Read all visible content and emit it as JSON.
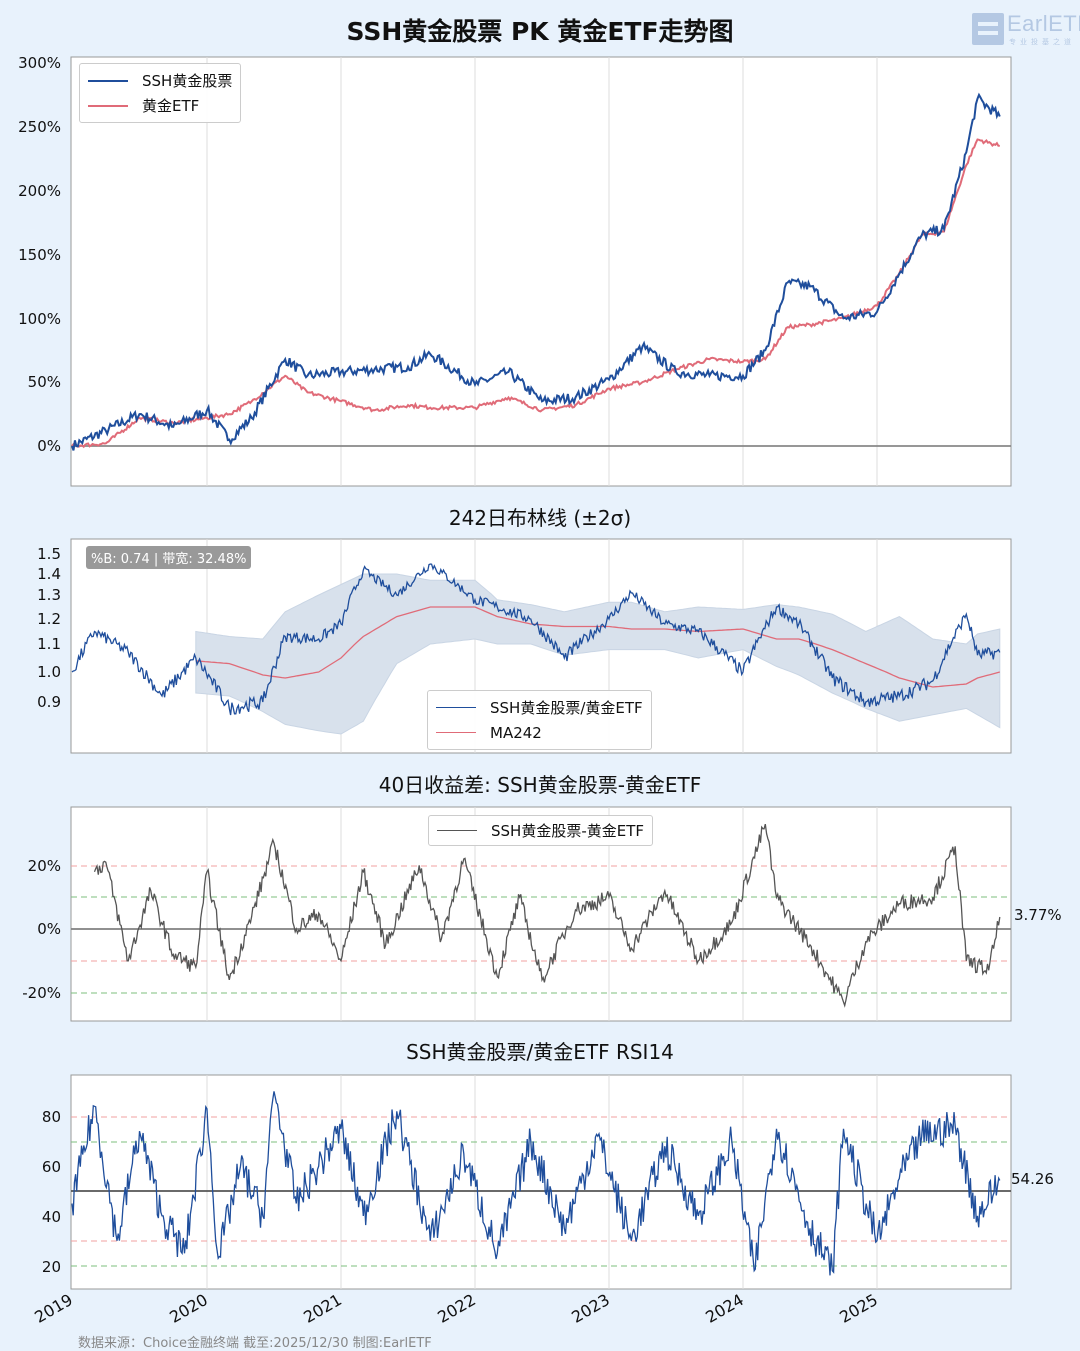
{
  "header": {
    "title": "SSH黄金股票 PK 黄金ETF走势图",
    "logo_text": "EarlETF",
    "logo_subtext": "专业投基之道"
  },
  "footer": {
    "source_text": "数据来源：Choice金融终端 截至:2025/12/30 制图:EarlETF"
  },
  "colors": {
    "background": "#e8f2fc",
    "ssh_stock_line": "#1f4e9c",
    "gold_etf_line": "#e06b78",
    "diff_line": "#555555",
    "band_fill": "#d8e1ec",
    "ma_line": "#e06b78",
    "ref_red_dashed": "#f0a0a0",
    "ref_green_dashed": "#7cbf7c",
    "zero_line": "#808080"
  },
  "chart_data": [
    {
      "id": "cumulative-return",
      "type": "line",
      "title": "SSH黄金股票 PK 黄金ETF走势图",
      "xlabel": "",
      "ylabel": "",
      "x_ticks": [
        "2019",
        "2020",
        "2021",
        "2022",
        "2023",
        "2024",
        "2025"
      ],
      "y_ticks": [
        "0%",
        "50%",
        "100%",
        "150%",
        "200%",
        "250%",
        "300%"
      ],
      "ylim": [
        -30,
        305
      ],
      "grid": "vertical",
      "legend_position": "upper left",
      "x": [
        "2019-01",
        "2019-04",
        "2019-07",
        "2019-10",
        "2020-01",
        "2020-03",
        "2020-05",
        "2020-08",
        "2020-10",
        "2021-01",
        "2021-04",
        "2021-07",
        "2021-09",
        "2022-01",
        "2022-04",
        "2022-07",
        "2022-10",
        "2023-01",
        "2023-04",
        "2023-07",
        "2023-10",
        "2024-01",
        "2024-03",
        "2024-05",
        "2024-07",
        "2024-10",
        "2025-01",
        "2025-03",
        "2025-05",
        "2025-07",
        "2025-09",
        "2025-10",
        "2025-12"
      ],
      "series": [
        {
          "name": "SSH黄金股票",
          "values": [
            0,
            12,
            25,
            15,
            28,
            5,
            22,
            68,
            55,
            58,
            60,
            62,
            72,
            48,
            58,
            35,
            38,
            52,
            78,
            58,
            55,
            55,
            75,
            128,
            125,
            100,
            105,
            135,
            165,
            170,
            230,
            272,
            258
          ]
        },
        {
          "name": "黄金ETF",
          "values": [
            0,
            2,
            22,
            18,
            22,
            25,
            35,
            55,
            42,
            35,
            28,
            32,
            30,
            30,
            38,
            28,
            32,
            45,
            50,
            60,
            68,
            66,
            68,
            93,
            95,
            100,
            110,
            135,
            165,
            168,
            220,
            240,
            235
          ]
        }
      ]
    },
    {
      "id": "bollinger-ratio",
      "type": "line",
      "title": "242日布林线 (±2σ)",
      "y_ticks": [
        "0.9",
        "1.0",
        "1.1",
        "1.2",
        "1.3",
        "1.4",
        "1.5"
      ],
      "ylim": [
        0.8,
        1.55
      ],
      "legend_position": "lower center",
      "annotation": "%B: 0.74 | 带宽: 32.48%",
      "x": [
        "2019-01",
        "2019-03",
        "2019-06",
        "2019-09",
        "2019-12",
        "2020-03",
        "2020-06",
        "2020-08",
        "2020-11",
        "2021-01",
        "2021-03",
        "2021-06",
        "2021-09",
        "2022-01",
        "2022-03",
        "2022-06",
        "2022-09",
        "2023-01",
        "2023-03",
        "2023-06",
        "2023-09",
        "2024-01",
        "2024-04",
        "2024-06",
        "2024-09",
        "2024-12",
        "2025-03",
        "2025-06",
        "2025-09",
        "2025-10",
        "2025-12"
      ],
      "series": [
        {
          "name": "SSH黄金股票/黄金ETF",
          "values": [
            1.0,
            1.15,
            1.07,
            0.92,
            1.05,
            0.88,
            0.9,
            1.13,
            1.12,
            1.18,
            1.42,
            1.3,
            1.45,
            1.28,
            1.25,
            1.2,
            1.05,
            1.2,
            1.31,
            1.18,
            1.15,
            1.0,
            1.25,
            1.18,
            0.98,
            0.9,
            0.92,
            0.97,
            1.22,
            1.06,
            1.07
          ]
        },
        {
          "name": "MA242",
          "values": [
            null,
            null,
            null,
            null,
            1.04,
            1.03,
            0.99,
            0.98,
            1.0,
            1.05,
            1.13,
            1.21,
            1.25,
            1.25,
            1.21,
            1.18,
            1.17,
            1.17,
            1.16,
            1.16,
            1.15,
            1.16,
            1.12,
            1.12,
            1.08,
            1.03,
            0.98,
            0.95,
            0.96,
            0.98,
            1.0
          ]
        },
        {
          "name": "Upper band",
          "values": [
            null,
            null,
            null,
            null,
            1.15,
            1.13,
            1.12,
            1.23,
            1.3,
            1.35,
            1.4,
            1.4,
            1.37,
            1.37,
            1.28,
            1.26,
            1.23,
            1.27,
            1.27,
            1.23,
            1.25,
            1.24,
            1.26,
            1.25,
            1.22,
            1.15,
            1.21,
            1.12,
            1.1,
            1.14,
            1.16
          ]
        },
        {
          "name": "Lower band",
          "values": [
            null,
            null,
            null,
            null,
            0.93,
            0.92,
            0.87,
            0.83,
            0.81,
            0.8,
            0.84,
            1.03,
            1.1,
            1.12,
            1.1,
            1.1,
            1.06,
            1.08,
            1.08,
            1.08,
            1.05,
            1.08,
            1.02,
            0.99,
            0.93,
            0.88,
            0.84,
            0.86,
            0.88,
            0.86,
            0.82
          ]
        }
      ]
    },
    {
      "id": "return-spread-40d",
      "type": "line",
      "title": "40日收益差: SSH黄金股票-黄金ETF",
      "y_ticks": [
        "-20%",
        "0%",
        "20%"
      ],
      "ylim": [
        -29,
        38
      ],
      "legend_position": "upper center",
      "reference_lines": [
        {
          "value": 20,
          "style": "dashed",
          "color": "red"
        },
        {
          "value": 10,
          "style": "dashed",
          "color": "green"
        },
        {
          "value": 0,
          "style": "solid",
          "color": "gray"
        },
        {
          "value": -10,
          "style": "dashed",
          "color": "red"
        },
        {
          "value": -20,
          "style": "dashed",
          "color": "green"
        }
      ],
      "last_value_label": "3.77%",
      "x": [
        "2019-03",
        "2019-04",
        "2019-06",
        "2019-08",
        "2019-10",
        "2019-12",
        "2020-01",
        "2020-03",
        "2020-05",
        "2020-07",
        "2020-09",
        "2020-11",
        "2021-01",
        "2021-03",
        "2021-05",
        "2021-08",
        "2021-10",
        "2021-12",
        "2022-03",
        "2022-05",
        "2022-07",
        "2022-10",
        "2023-01",
        "2023-03",
        "2023-06",
        "2023-09",
        "2023-12",
        "2024-03",
        "2024-04",
        "2024-07",
        "2024-10",
        "2024-12",
        "2025-03",
        "2025-06",
        "2025-08",
        "2025-09",
        "2025-11",
        "2025-12"
      ],
      "series": [
        {
          "name": "SSH黄金股票-黄金ETF",
          "values": [
            18,
            21,
            -10,
            12,
            -8,
            -12,
            18,
            -16,
            4,
            27,
            0,
            5,
            -10,
            18,
            -5,
            20,
            -3,
            22,
            -15,
            10,
            -16,
            6,
            10,
            -6,
            12,
            -10,
            2,
            33,
            10,
            -5,
            -23,
            -4,
            8,
            10,
            26,
            -10,
            -13,
            3.77
          ]
        }
      ]
    },
    {
      "id": "rsi14",
      "type": "line",
      "title": "SSH黄金股票/黄金ETF RSI14",
      "y_ticks": [
        "20",
        "40",
        "60",
        "80"
      ],
      "ylim": [
        11,
        97
      ],
      "reference_lines": [
        {
          "value": 80,
          "style": "dashed",
          "color": "red"
        },
        {
          "value": 70,
          "style": "dashed",
          "color": "green"
        },
        {
          "value": 50,
          "style": "solid",
          "color": "gray"
        },
        {
          "value": 30,
          "style": "dashed",
          "color": "red"
        },
        {
          "value": 20,
          "style": "dashed",
          "color": "green"
        }
      ],
      "last_value_label": "54.26",
      "x": [
        "2019-01",
        "2019-03",
        "2019-05",
        "2019-07",
        "2019-09",
        "2019-11",
        "2020-01",
        "2020-02",
        "2020-04",
        "2020-06",
        "2020-07",
        "2020-09",
        "2020-11",
        "2021-01",
        "2021-03",
        "2021-06",
        "2021-09",
        "2021-12",
        "2022-03",
        "2022-06",
        "2022-09",
        "2022-12",
        "2023-03",
        "2023-06",
        "2023-09",
        "2023-12",
        "2024-02",
        "2024-04",
        "2024-07",
        "2024-09",
        "2024-10",
        "2025-01",
        "2025-03",
        "2025-05",
        "2025-08",
        "2025-10",
        "2025-12"
      ],
      "series": [
        {
          "name": "RSI14",
          "values": [
            45,
            84,
            30,
            74,
            40,
            25,
            83,
            23,
            60,
            40,
            90,
            45,
            60,
            75,
            40,
            82,
            30,
            65,
            25,
            70,
            35,
            72,
            30,
            68,
            40,
            70,
            18,
            75,
            35,
            18,
            75,
            30,
            55,
            72,
            76,
            40,
            54.26
          ]
        }
      ]
    }
  ],
  "charts": {
    "main": {
      "legend": [
        {
          "label": "SSH黄金股票"
        },
        {
          "label": "黄金ETF"
        }
      ]
    },
    "bollinger": {
      "title": "242日布林线 (±2σ)",
      "badge": "%B: 0.74 | 带宽: 32.48%",
      "legend": [
        {
          "label": "SSH黄金股票/黄金ETF"
        },
        {
          "label": "MA242"
        }
      ]
    },
    "spread": {
      "title": "40日收益差: SSH黄金股票-黄金ETF",
      "legend": [
        {
          "label": "SSH黄金股票-黄金ETF"
        }
      ],
      "last_value": "3.77%"
    },
    "rsi": {
      "title": "SSH黄金股票/黄金ETF RSI14",
      "last_value": "54.26"
    },
    "x_axis_years": [
      "2019",
      "2020",
      "2021",
      "2022",
      "2023",
      "2024",
      "2025"
    ]
  }
}
